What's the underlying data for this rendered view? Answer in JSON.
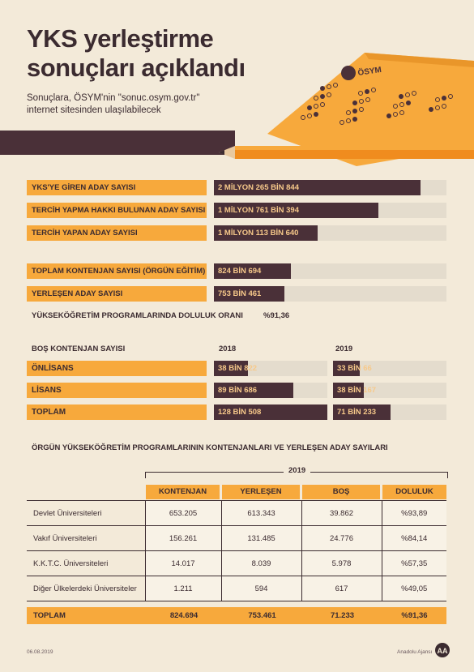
{
  "header": {
    "title_line1": "YKS yerleştirme",
    "title_line2": "sonuçları açıklandı",
    "subtitle_line1": "Sonuçlara, ÖSYM'nin \"sonuc.osym.gov.tr\"",
    "subtitle_line2": "internet sitesinden ulaşılabilecek",
    "sheet_logo": "ÖSYM"
  },
  "section1": {
    "max_fill_fraction_basis": "2 MİLYON 265 BİN 844",
    "rows": [
      {
        "label": "YKS'YE GİREN ADAY SAYISI",
        "value": "2 MİLYON 265 BİN 844",
        "fill": 0.887
      },
      {
        "label": "TERCİH YAPMA HAKKI BULUNAN ADAY SAYISI",
        "value": "1 MİLYON 761 BİN 394",
        "fill": 0.706
      },
      {
        "label": "TERCİH YAPAN ADAY SAYISI",
        "value": "1 MİLYON 113 BİN 640",
        "fill": 0.446
      }
    ]
  },
  "section2": {
    "rows": [
      {
        "label": "TOPLAM KONTENJAN SAYISI (ÖRGÜN EĞİTİM)",
        "value": "824 BİN 694",
        "fill": 0.33
      },
      {
        "label": "YERLEŞEN ADAY SAYISI",
        "value": "753 BİN 461",
        "fill": 0.302
      }
    ],
    "ratio_label": "YÜKSEKÖĞRETİM PROGRAMLARINDA DOLULUK ORANI",
    "ratio_value": "%91,36"
  },
  "section3": {
    "heading": "BOŞ KONTENJAN SAYISI",
    "year1": "2018",
    "year2": "2019",
    "rows": [
      {
        "label": "ÖNLİSANS",
        "v2018": "38 BİN 822",
        "f2018": 0.303,
        "v2019": "33 BİN 66",
        "f2019": 0.236
      },
      {
        "label": "LİSANS",
        "v2018": "89 BİN 686",
        "f2018": 0.7,
        "v2019": "38 BİN 167",
        "f2019": 0.273
      },
      {
        "label": "TOPLAM",
        "v2018": "128 BİN 508",
        "f2018": 1.0,
        "v2019": "71 BİN 233",
        "f2019": 0.509
      }
    ]
  },
  "table": {
    "heading": "ÖRGÜN YÜKSEKÖĞRETİM PROGRAMLARININ KONTENJANLARI VE YERLEŞEN ADAY SAYILARI",
    "year": "2019",
    "columns": [
      "KONTENJAN",
      "YERLEŞEN",
      "BOŞ",
      "DOLULUK"
    ],
    "rows": [
      {
        "name": "Devlet Üniversiteleri",
        "c1": "653.205",
        "c2": "613.343",
        "c3": "39.862",
        "c4": "%93,89"
      },
      {
        "name": "Vakıf Üniversiteleri",
        "c1": "156.261",
        "c2": "131.485",
        "c3": "24.776",
        "c4": "%84,14"
      },
      {
        "name": "K.K.T.C. Üniversiteleri",
        "c1": "14.017",
        "c2": "8.039",
        "c3": "5.978",
        "c4": "%57,35"
      },
      {
        "name": "Diğer Ülkelerdeki Üniversiteler",
        "c1": "1.211",
        "c2": "594",
        "c3": "617",
        "c4": "%49,05"
      }
    ],
    "total": {
      "name": "TOPLAM",
      "c1": "824.694",
      "c2": "753.461",
      "c3": "71.233",
      "c4": "%91,36"
    }
  },
  "footer": {
    "date": "06.08.2019",
    "agency": "Anadolu Ajansı",
    "logo": "AA"
  },
  "colors": {
    "accent": "#f7a93c",
    "dark": "#4a3038",
    "background": "#f3ead9",
    "track": "#e4dccd"
  }
}
